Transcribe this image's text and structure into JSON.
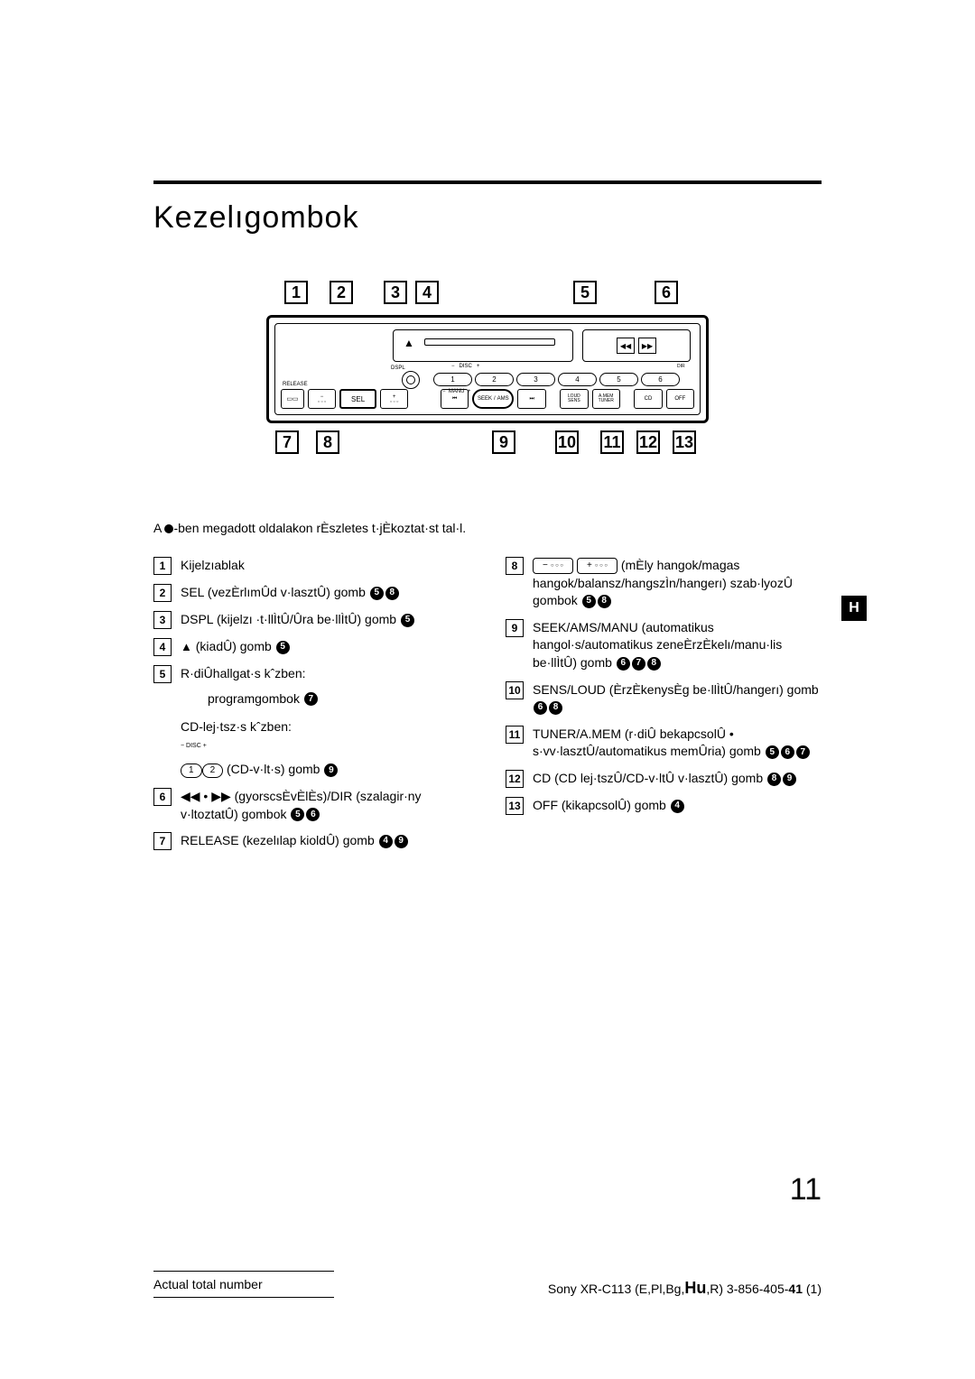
{
  "title": "Kezelıgombok",
  "intro": "-ben megadott oldalakon rÈszletes t·jÈkoztat·st tal·l.",
  "intro_prefix": "A ",
  "side_tab": "H",
  "page_number": "11",
  "diagram": {
    "top_callouts": [
      "1",
      "2",
      "3",
      "4",
      "5",
      "6"
    ],
    "bottom_callouts": [
      "7",
      "8",
      "9",
      "10",
      "11",
      "12",
      "13"
    ],
    "labels": {
      "dspl": "DSPL",
      "disc": "DISC",
      "release": "RELEASE",
      "sel": "SEL",
      "manu": "MANU",
      "seek": "SEEK",
      "ams": "AMS",
      "loud": "LOUD",
      "sens": "SENS",
      "amem": "A.MEM",
      "tuner": "TUNER",
      "cd": "CD",
      "off": "OFF",
      "dir": "DIR"
    },
    "presets": [
      "1",
      "2",
      "3",
      "4",
      "5",
      "6"
    ]
  },
  "mini_buttons": {
    "one": "1",
    "two": "2",
    "minus_dots": "−",
    "plus_dots": "+"
  },
  "left_items": [
    {
      "num": "1",
      "text": "Kijelzıablak",
      "refs": []
    },
    {
      "num": "2",
      "text": "SEL (vezÈrlımÛd v·lasztÛ) gomb",
      "refs": [
        "5",
        "8"
      ]
    },
    {
      "num": "3",
      "text": "DSPL (kijelzı ·t·llÌtÛ/Ûra be·llÌtÛ) gomb",
      "refs": [
        "5"
      ]
    },
    {
      "num": "4",
      "text_after": "(kiadÛ) gomb",
      "eject": true,
      "refs": [
        "5"
      ]
    },
    {
      "num": "5",
      "text": "R·diÛhallgat·s kˆzben:",
      "refs": [],
      "sub1": {
        "text": "programgombok",
        "refs": [
          "7"
        ]
      },
      "sub2_label": "CD-lej·tsz·s kˆzben:",
      "sub2": {
        "text": "(CD-v·lt·s) gomb",
        "refs": [
          "9"
        ],
        "disc_buttons": true
      }
    },
    {
      "num": "6",
      "prefix_symbols": "◀◀ • ▶▶",
      "text": " (gyorscsÈvÈlÈs)/DIR (szalagir·ny v·ltoztatÛ) gombok",
      "refs": [
        "5",
        "6"
      ]
    },
    {
      "num": "7",
      "text": "RELEASE (kezelılap kioldÛ) gomb",
      "refs": [
        "4",
        "9"
      ]
    }
  ],
  "right_items": [
    {
      "num": "8",
      "tone_buttons": true,
      "text": " (mÈly hangok/magas hangok/balansz/hangszÌn/hangerı) szab·lyozÛ gombok",
      "refs": [
        "5",
        "8"
      ]
    },
    {
      "num": "9",
      "text": "SEEK/AMS/MANU (automatikus hangol·s/automatikus zeneÈrzÈkelı/manu·lis be·llÌtÛ) gomb",
      "refs": [
        "6",
        "7",
        "8"
      ]
    },
    {
      "num": "10",
      "text": "SENS/LOUD (ÈrzÈkenysÈg be·llÌtÛ/hangerı) gomb",
      "refs": [
        "6",
        "8"
      ]
    },
    {
      "num": "11",
      "text": "TUNER/A.MEM (r·diÛ bekapcsolÛ • s·vv·lasztÛ/automatikus memÛria) gomb",
      "refs": [
        "5",
        "6",
        "7"
      ]
    },
    {
      "num": "12",
      "text": "CD (CD lej·tszÛ/CD-v·ltÛ v·lasztÛ) gomb",
      "refs": [
        "8",
        "9"
      ]
    },
    {
      "num": "13",
      "text": "OFF (kikapcsolÛ) gomb",
      "refs": [
        "4"
      ]
    }
  ],
  "footer": {
    "left": "Actual total number",
    "right_prefix": "Sony XR-C113 (E,Pl,Bg,",
    "right_bold": "Hu",
    "right_mid": ",R)  3-856-405-",
    "right_bold2": "41",
    "right_suffix": " (1)"
  }
}
